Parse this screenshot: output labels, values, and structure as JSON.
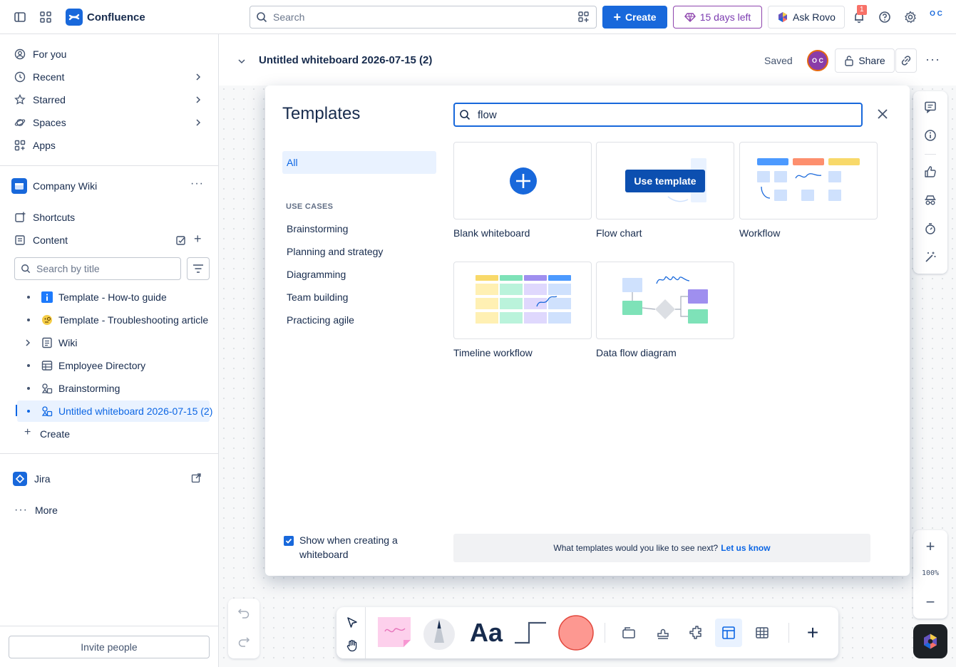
{
  "topbar": {
    "app_name": "Confluence",
    "search_placeholder": "Search",
    "create_label": "Create",
    "trial_label": "15 days left",
    "rovo_label": "Ask Rovo",
    "notification_count": "1",
    "profile_initials": "O C"
  },
  "sidebar": {
    "nav": [
      {
        "label": "For you",
        "icon": "user-circle-icon"
      },
      {
        "label": "Recent",
        "icon": "clock-icon"
      },
      {
        "label": "Starred",
        "icon": "star-icon"
      },
      {
        "label": "Spaces",
        "icon": "planet-icon"
      },
      {
        "label": "Apps",
        "icon": "apps-icon"
      }
    ],
    "space_name": "Company Wiki",
    "shortcuts_label": "Shortcuts",
    "content_label": "Content",
    "search_placeholder": "Search by title",
    "tree": [
      {
        "label": "Template - How-to guide",
        "icon": "info-icon"
      },
      {
        "label": "Template - Troubleshooting article",
        "icon": "emoji-icon"
      },
      {
        "label": "Wiki",
        "icon": "page-icon"
      },
      {
        "label": "Employee Directory",
        "icon": "database-icon"
      },
      {
        "label": "Brainstorming",
        "icon": "whiteboard-icon"
      },
      {
        "label": "Untitled whiteboard 2026-07-15 (2)",
        "icon": "whiteboard-icon"
      }
    ],
    "create_label": "Create",
    "jira_label": "Jira",
    "more_label": "More",
    "invite_label": "Invite people"
  },
  "page": {
    "title": "Untitled whiteboard 2026-07-15 (2)",
    "status": "Saved",
    "collaborator_initials": "O C",
    "share_label": "Share",
    "zoom": "100%"
  },
  "modal": {
    "title": "Templates",
    "search_value": "flow",
    "category_all": "All",
    "use_cases_heading": "USE CASES",
    "categories": [
      "Brainstorming",
      "Planning and strategy",
      "Diagramming",
      "Team building",
      "Practicing agile"
    ],
    "templates": [
      {
        "label": "Blank whiteboard"
      },
      {
        "label": "Flow chart"
      },
      {
        "label": "Workflow"
      },
      {
        "label": "Timeline workflow"
      },
      {
        "label": "Data flow diagram"
      }
    ],
    "use_template_label": "Use template",
    "show_on_create_label": "Show when creating a whiteboard",
    "feedback_text": "What templates would you like to see next?",
    "feedback_link": "Let us know"
  },
  "toolbar": {
    "text_tool_label": "Aa"
  },
  "colors": {
    "brand": "#1868db",
    "accent_purple": "#8e44ad",
    "active_bg": "#e9f2ff"
  }
}
